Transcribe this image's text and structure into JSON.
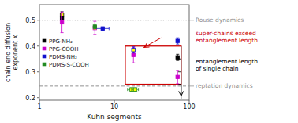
{
  "chart_data": {
    "type": "scatter",
    "xlabel": "Kuhn segments",
    "ylabel": "chain end diffusion\nexponent x",
    "log": "x",
    "xlim": [
      1,
      100
    ],
    "xticks": [
      1,
      10,
      100
    ],
    "ylim": [
      0.19,
      0.56
    ],
    "yticks": [
      0.2,
      0.3,
      0.4,
      0.5
    ],
    "grid": false,
    "legend": "center left",
    "marker": "square",
    "highlight_color": "#ffff00",
    "series": [
      {
        "name": "PPG-NH₂",
        "color": "#000000",
        "x": [
          2.0,
          2.0,
          70
        ],
        "values": [
          0.521,
          0.508,
          0.356
        ],
        "errors": [
          0.012,
          0.006,
          0.012
        ],
        "x_errors": [
          null,
          null,
          null
        ],
        "highlighted": [
          0
        ]
      },
      {
        "name": "PPG-COOH",
        "color": "#cc00cc",
        "x": [
          2.0,
          5.5,
          18,
          70
        ],
        "values": [
          0.492,
          0.47,
          0.365,
          0.28
        ],
        "errors": [
          0.04,
          0.026,
          0.03,
          0.026
        ],
        "x_errors": [
          null,
          null,
          null,
          null
        ],
        "highlighted": [
          1
        ]
      },
      {
        "name": "PDMS-NH₂",
        "color": "#1111cc",
        "x": [
          7,
          18,
          70
        ],
        "values": [
          0.468,
          0.385,
          0.42
        ],
        "errors": [
          0.006,
          0.012,
          0.012
        ],
        "x_errors": [
          1.5,
          null,
          null
        ],
        "highlighted": [
          1
        ]
      },
      {
        "name": "PDMS-S-COOH",
        "color": "#228B22",
        "x": [
          5.5,
          17,
          19
        ],
        "values": [
          0.475,
          0.232,
          0.232
        ],
        "errors": [
          0.006,
          0.006,
          0.006
        ],
        "x_errors": [
          null,
          2.0,
          2.0
        ],
        "highlighted": [
          1,
          2
        ]
      }
    ],
    "reference_lines": [
      {
        "y": 0.5,
        "label": "Rouse dynamics",
        "line_style": "dotted",
        "color": "#909090"
      },
      {
        "y": 0.245,
        "label": "reptation dynamics",
        "line_style": "dashed",
        "color": "#909090"
      }
    ],
    "box": {
      "x": [
        14,
        78
      ],
      "y": [
        0.252,
        0.4
      ],
      "color": "#cc0000"
    },
    "vertical_line": {
      "x": 78,
      "y": [
        0.195,
        0.4
      ],
      "ticks": [
        0.252,
        0.3,
        0.35
      ],
      "color": "#000000"
    },
    "arrows": [
      {
        "from": {
          "x": 42,
          "y": 0.432
        },
        "to": {
          "x": 25,
          "y": 0.395
        },
        "color": "#cc0000"
      },
      {
        "from": {
          "x": 78,
          "y": 0.25
        },
        "to": {
          "x": 78,
          "y": 0.207
        },
        "color": "#000000"
      }
    ],
    "annotations": [
      {
        "text": "super-chains exceed\nentanglement length",
        "color": "#cc0000"
      },
      {
        "text": "entanglement length\nof single chain",
        "color": "#000000"
      }
    ]
  }
}
